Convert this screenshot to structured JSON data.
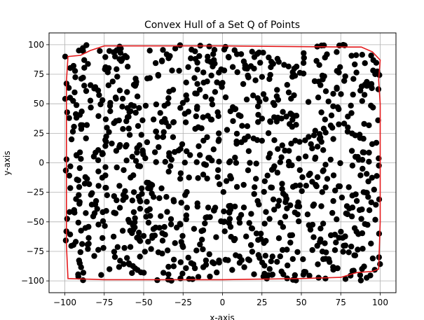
{
  "chart_data": {
    "type": "scatter",
    "title": "Convex Hull of a Set Q of Points",
    "xlabel": "x-axis",
    "ylabel": "y-axis",
    "xlim": [
      -110,
      110
    ],
    "ylim": [
      -110,
      110
    ],
    "xticks": [
      -100,
      -75,
      -50,
      -25,
      0,
      25,
      50,
      75,
      100
    ],
    "yticks": [
      -100,
      -75,
      -50,
      -25,
      0,
      25,
      50,
      75,
      100
    ],
    "grid": true,
    "legend": "none",
    "point_color": "#000000",
    "hull_color": "#e41a1c",
    "hull": [
      [
        -99,
        69
      ],
      [
        -98,
        90
      ],
      [
        -90,
        91
      ],
      [
        -84,
        95
      ],
      [
        -75,
        99
      ],
      [
        -50,
        99
      ],
      [
        0,
        99
      ],
      [
        80,
        98
      ],
      [
        88,
        98
      ],
      [
        95,
        94
      ],
      [
        100,
        87
      ],
      [
        99,
        70
      ],
      [
        100,
        50
      ],
      [
        100,
        0
      ],
      [
        100,
        -50
      ],
      [
        99,
        -90
      ],
      [
        95,
        -92
      ],
      [
        85,
        -93
      ],
      [
        75,
        -97
      ],
      [
        50,
        -98
      ],
      [
        0,
        -99
      ],
      [
        -50,
        -99
      ],
      [
        -75,
        -99
      ],
      [
        -98,
        -98
      ],
      [
        -99,
        -70
      ],
      [
        -99,
        -40
      ],
      [
        -99,
        0
      ],
      [
        -99,
        30
      ],
      [
        -99,
        69
      ]
    ],
    "points": {
      "count": 1000,
      "x_range": [
        -100,
        100
      ],
      "y_range": [
        -100,
        100
      ],
      "distribution": "uniform"
    }
  }
}
